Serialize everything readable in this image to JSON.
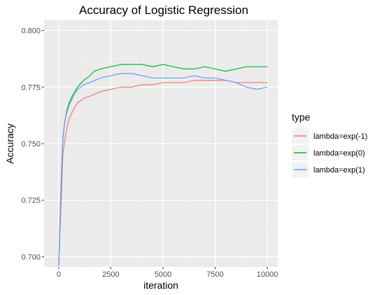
{
  "chart_data": {
    "type": "line",
    "title": "Accuracy of Logistic Regression",
    "xlabel": "iteration",
    "ylabel": "Accuracy",
    "xlim": [
      -700,
      10500
    ],
    "ylim": [
      0.6955,
      0.8045
    ],
    "x_ticks": [
      {
        "value": 0,
        "label": "0"
      },
      {
        "value": 2500,
        "label": "2500"
      },
      {
        "value": 5000,
        "label": "5000"
      },
      {
        "value": 7500,
        "label": "7500"
      },
      {
        "value": 10000,
        "label": "10000"
      }
    ],
    "y_ticks": [
      {
        "value": 0.7,
        "label": "0.700"
      },
      {
        "value": 0.725,
        "label": "0.725"
      },
      {
        "value": 0.75,
        "label": "0.750"
      },
      {
        "value": 0.775,
        "label": "0.775"
      },
      {
        "value": 0.8,
        "label": "0.800"
      }
    ],
    "grid": true,
    "background": "#ebebeb",
    "legend": {
      "title": "type",
      "position": "right"
    },
    "series": [
      {
        "name": "lambda=exp(-1)",
        "color": "#F8766D",
        "x": [
          0,
          100,
          200,
          300,
          400,
          500,
          700,
          900,
          1200,
          1500,
          2000,
          2500,
          3000,
          3500,
          4000,
          4500,
          5000,
          5500,
          6000,
          6500,
          7000,
          7500,
          8000,
          8500,
          9000,
          9500,
          10000
        ],
        "y": [
          0.696,
          0.72,
          0.745,
          0.752,
          0.757,
          0.761,
          0.765,
          0.768,
          0.77,
          0.771,
          0.773,
          0.774,
          0.775,
          0.775,
          0.776,
          0.776,
          0.777,
          0.777,
          0.777,
          0.778,
          0.778,
          0.778,
          0.778,
          0.777,
          0.777,
          0.777,
          0.777
        ]
      },
      {
        "name": "lambda=exp(0)",
        "color": "#00BA38",
        "x": [
          0,
          100,
          200,
          300,
          400,
          500,
          700,
          900,
          1200,
          1500,
          1700,
          2000,
          2500,
          3000,
          3500,
          4000,
          4500,
          5000,
          5500,
          6000,
          6500,
          7000,
          7500,
          8000,
          8500,
          9000,
          9500,
          10000
        ],
        "y": [
          0.696,
          0.728,
          0.752,
          0.76,
          0.765,
          0.768,
          0.772,
          0.775,
          0.778,
          0.78,
          0.782,
          0.783,
          0.784,
          0.785,
          0.785,
          0.785,
          0.784,
          0.785,
          0.784,
          0.783,
          0.783,
          0.784,
          0.783,
          0.782,
          0.783,
          0.784,
          0.784,
          0.784
        ]
      },
      {
        "name": "lambda=exp(1)",
        "color": "#619CFF",
        "x": [
          0,
          100,
          200,
          300,
          400,
          500,
          700,
          900,
          1200,
          1500,
          2000,
          2500,
          3000,
          3500,
          4000,
          4500,
          5000,
          5500,
          6000,
          6500,
          7000,
          7500,
          8000,
          8500,
          9000,
          9500,
          10000
        ],
        "y": [
          0.696,
          0.728,
          0.752,
          0.76,
          0.764,
          0.767,
          0.771,
          0.774,
          0.776,
          0.777,
          0.779,
          0.78,
          0.781,
          0.781,
          0.78,
          0.779,
          0.779,
          0.779,
          0.779,
          0.78,
          0.779,
          0.779,
          0.778,
          0.777,
          0.775,
          0.774,
          0.775
        ]
      }
    ]
  }
}
